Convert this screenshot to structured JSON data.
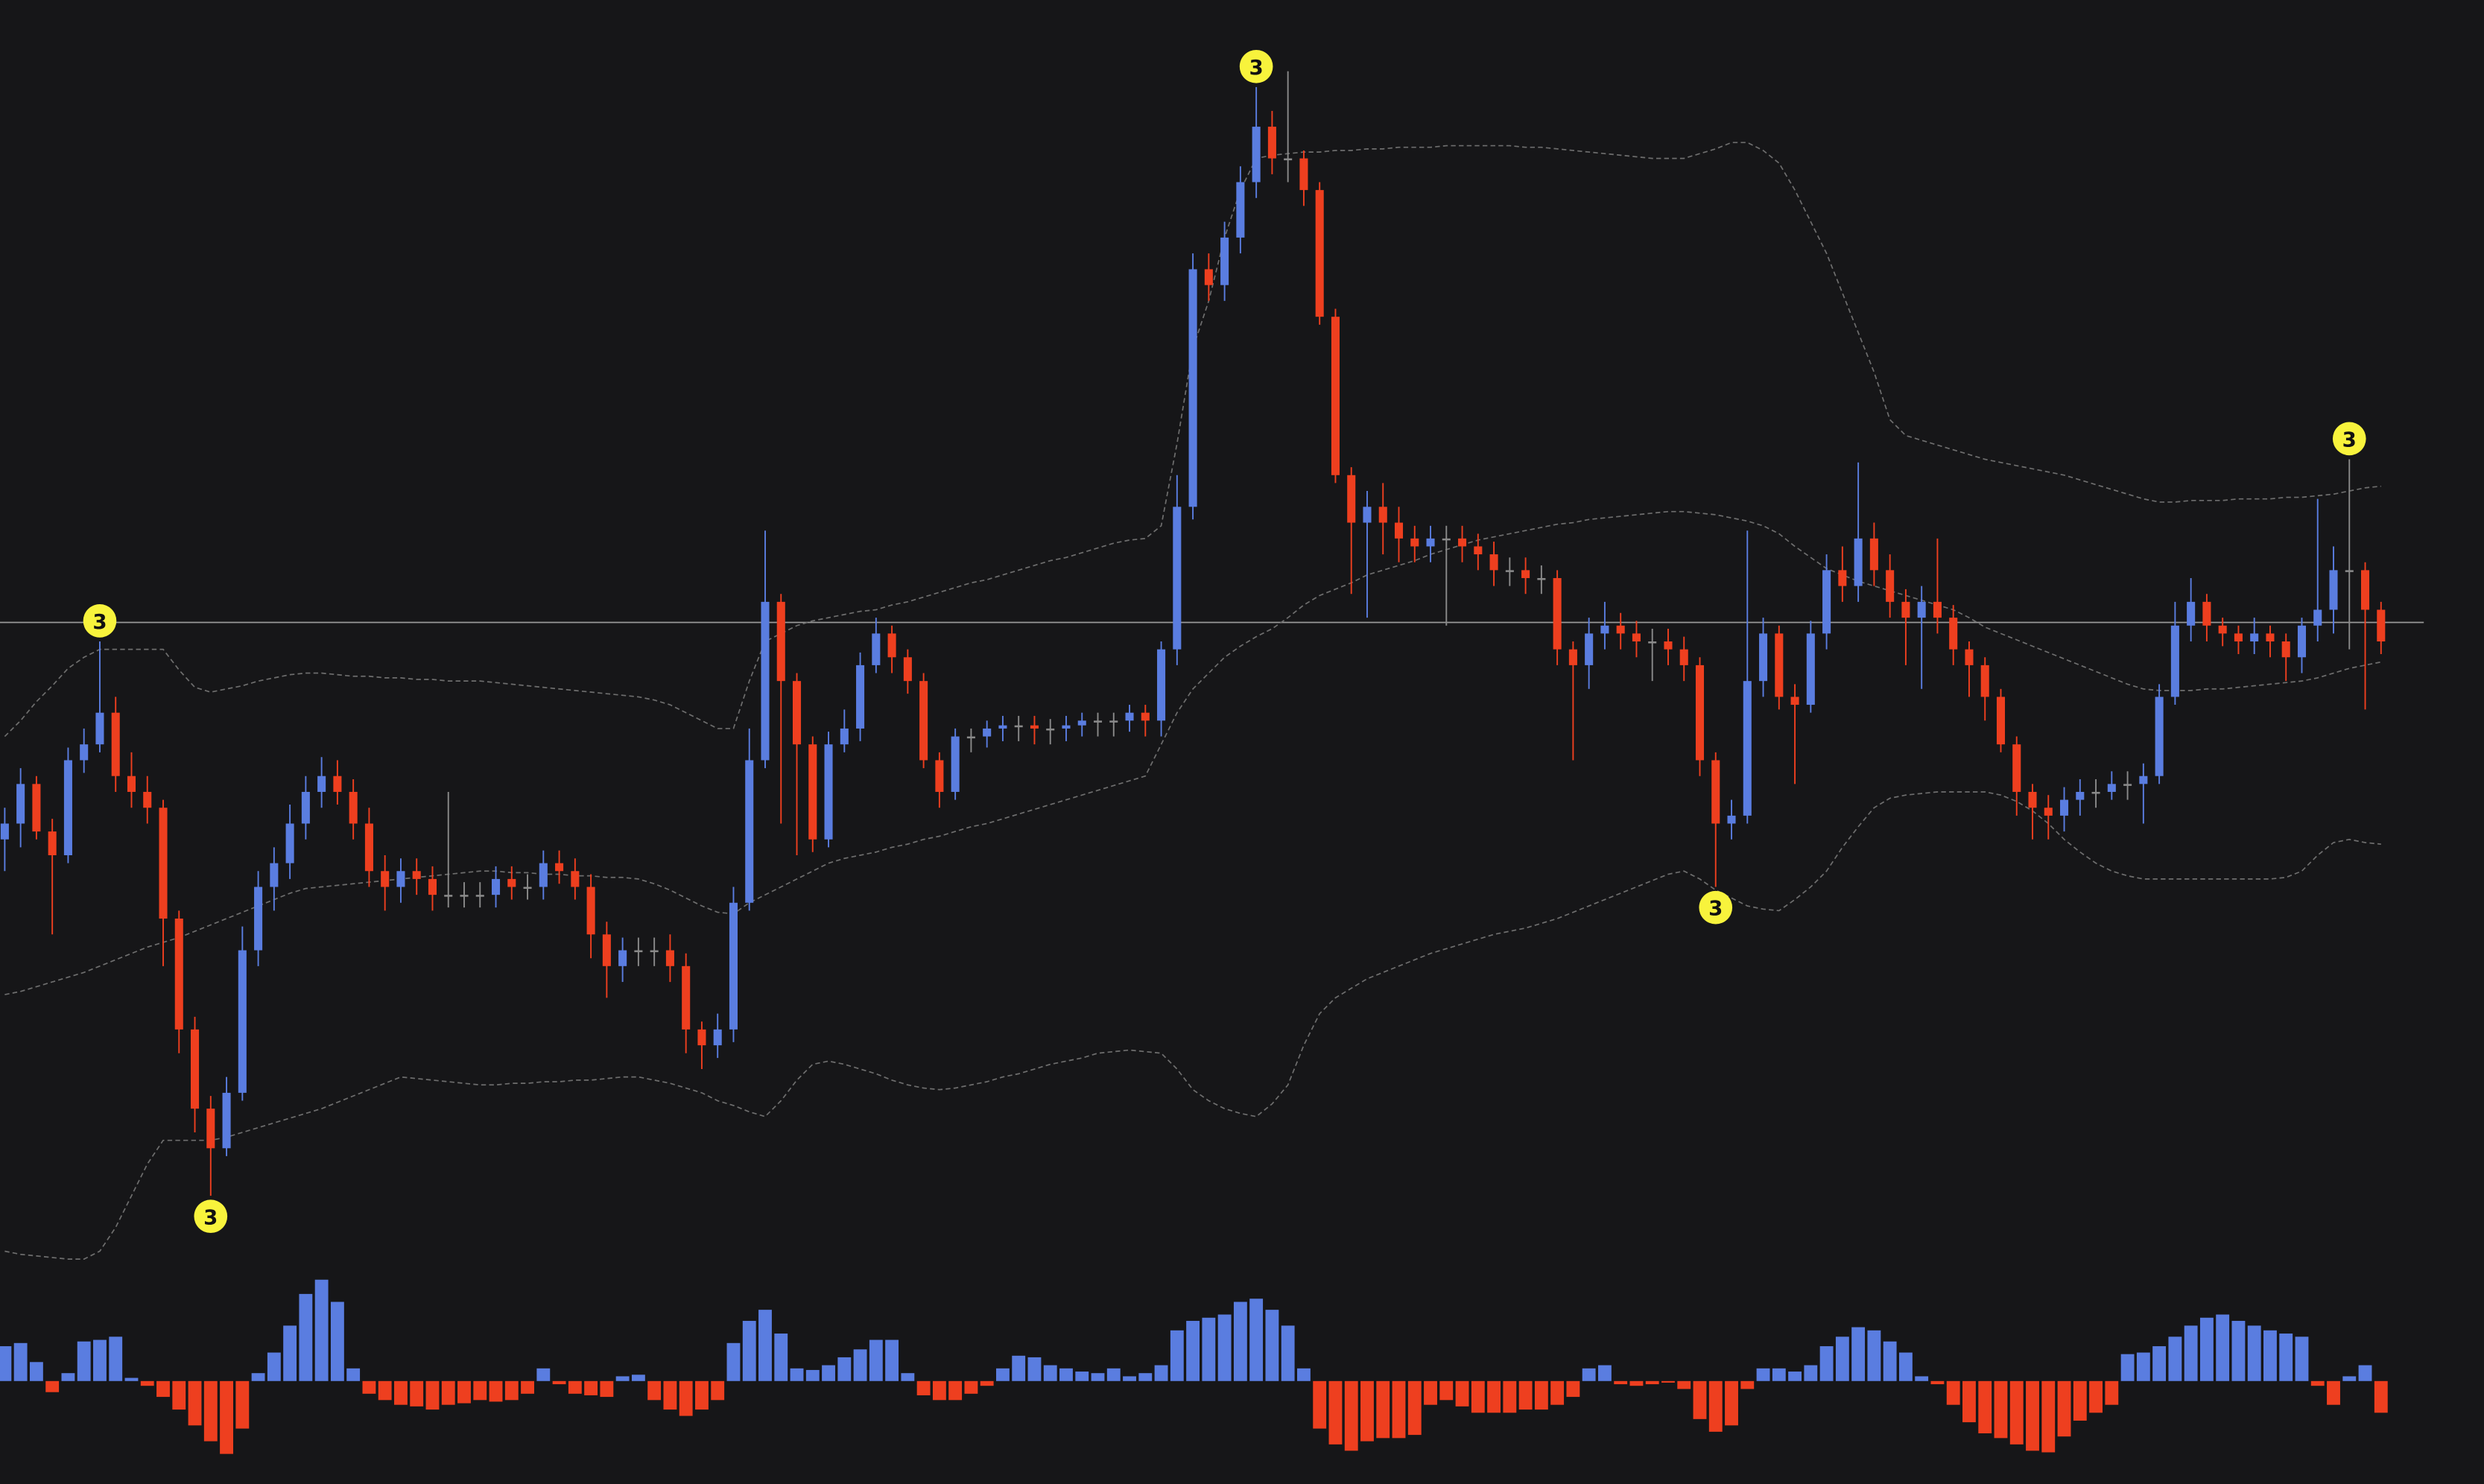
{
  "chart_data": [
    {
      "type": "candlestick",
      "ylim": [
        200,
        1000
      ],
      "hline": 607,
      "colors": {
        "up": "#5a7de0",
        "down": "#ee3f1f",
        "neutral": "#8a8a8a",
        "band": "#6e6e6e",
        "hline": "#9a9a9a",
        "marker": "#f8f33c"
      },
      "open": [
        470,
        480,
        505,
        475,
        460,
        520,
        530,
        550,
        510,
        500,
        490,
        420,
        350,
        300,
        275,
        310,
        400,
        440,
        455,
        480,
        500,
        510,
        500,
        480,
        450,
        440,
        450,
        445,
        435,
        435,
        435,
        435,
        445,
        440,
        440,
        455,
        450,
        440,
        410,
        390,
        400,
        400,
        400,
        390,
        350,
        340,
        350,
        430,
        520,
        620,
        570,
        530,
        470,
        530,
        540,
        580,
        600,
        585,
        570,
        520,
        500,
        535,
        535,
        540,
        542,
        542,
        540,
        540,
        542,
        545,
        545,
        545,
        550,
        545,
        590,
        680,
        830,
        820,
        850,
        885,
        920,
        900,
        900,
        880,
        800,
        700,
        670,
        680,
        670,
        660,
        655,
        660,
        660,
        655,
        650,
        640,
        640,
        635,
        635,
        590,
        580,
        600,
        605,
        600,
        595,
        595,
        590,
        580,
        520,
        480,
        485,
        570,
        600,
        560,
        555,
        600,
        640,
        630,
        660,
        640,
        620,
        610,
        620,
        610,
        590,
        580,
        560,
        530,
        500,
        490,
        485,
        495,
        500,
        500,
        505,
        505,
        510,
        560,
        605,
        620,
        605,
        600,
        595,
        600,
        595,
        585,
        605,
        615,
        640,
        640,
        615
      ],
      "high": [
        490,
        515,
        510,
        483,
        528,
        540,
        595,
        560,
        525,
        510,
        495,
        425,
        358,
        308,
        320,
        415,
        450,
        465,
        492,
        510,
        522,
        520,
        508,
        490,
        460,
        458,
        458,
        453,
        500,
        443,
        443,
        453,
        453,
        448,
        463,
        463,
        458,
        448,
        418,
        408,
        408,
        408,
        410,
        398,
        355,
        360,
        440,
        540,
        665,
        625,
        575,
        535,
        538,
        552,
        588,
        610,
        605,
        590,
        575,
        525,
        540,
        540,
        545,
        548,
        548,
        548,
        546,
        548,
        550,
        550,
        550,
        555,
        555,
        595,
        700,
        840,
        840,
        860,
        895,
        945,
        930,
        955,
        905,
        885,
        805,
        705,
        690,
        695,
        680,
        668,
        668,
        668,
        668,
        663,
        658,
        648,
        648,
        643,
        640,
        595,
        610,
        620,
        613,
        608,
        603,
        603,
        598,
        585,
        525,
        495,
        665,
        610,
        605,
        568,
        608,
        650,
        655,
        708,
        670,
        650,
        628,
        630,
        660,
        618,
        595,
        585,
        565,
        535,
        505,
        498,
        503,
        508,
        508,
        513,
        513,
        518,
        568,
        620,
        635,
        625,
        610,
        605,
        610,
        605,
        600,
        610,
        685,
        655,
        710,
        645,
        620
      ],
      "low": [
        450,
        465,
        470,
        410,
        455,
        512,
        525,
        500,
        490,
        480,
        390,
        335,
        285,
        245,
        270,
        305,
        390,
        425,
        445,
        470,
        490,
        492,
        470,
        440,
        425,
        430,
        435,
        425,
        427,
        427,
        427,
        427,
        432,
        432,
        432,
        442,
        432,
        395,
        370,
        380,
        390,
        390,
        380,
        335,
        325,
        332,
        342,
        425,
        515,
        480,
        460,
        462,
        465,
        525,
        532,
        575,
        575,
        562,
        515,
        490,
        495,
        525,
        528,
        532,
        532,
        530,
        530,
        532,
        535,
        535,
        535,
        538,
        535,
        535,
        580,
        672,
        810,
        810,
        840,
        875,
        890,
        885,
        870,
        795,
        695,
        625,
        610,
        650,
        645,
        645,
        645,
        605,
        645,
        640,
        630,
        630,
        625,
        625,
        580,
        520,
        565,
        590,
        590,
        585,
        570,
        580,
        570,
        510,
        440,
        470,
        480,
        560,
        552,
        505,
        550,
        590,
        620,
        620,
        630,
        610,
        580,
        565,
        600,
        580,
        560,
        545,
        525,
        485,
        470,
        470,
        475,
        485,
        490,
        495,
        495,
        480,
        505,
        555,
        595,
        595,
        592,
        587,
        587,
        585,
        570,
        575,
        595,
        600,
        590,
        552,
        587
      ],
      "close": [
        480,
        505,
        475,
        460,
        520,
        530,
        550,
        510,
        500,
        490,
        420,
        350,
        300,
        275,
        310,
        400,
        440,
        455,
        480,
        500,
        510,
        500,
        480,
        450,
        440,
        450,
        445,
        435,
        435,
        435,
        435,
        445,
        440,
        440,
        455,
        450,
        440,
        410,
        390,
        400,
        400,
        400,
        390,
        350,
        340,
        350,
        430,
        520,
        620,
        570,
        530,
        470,
        530,
        540,
        580,
        600,
        585,
        570,
        520,
        500,
        535,
        535,
        540,
        542,
        542,
        540,
        540,
        542,
        545,
        545,
        545,
        550,
        545,
        590,
        680,
        830,
        820,
        850,
        885,
        920,
        900,
        900,
        880,
        800,
        700,
        670,
        680,
        670,
        660,
        655,
        660,
        660,
        655,
        650,
        640,
        640,
        635,
        635,
        590,
        580,
        600,
        605,
        600,
        595,
        595,
        590,
        580,
        520,
        480,
        485,
        570,
        600,
        560,
        555,
        600,
        640,
        630,
        660,
        640,
        620,
        610,
        620,
        610,
        590,
        580,
        560,
        530,
        500,
        490,
        485,
        495,
        500,
        500,
        505,
        505,
        510,
        560,
        605,
        620,
        605,
        600,
        595,
        600,
        595,
        585,
        605,
        615,
        640,
        640,
        615,
        595
      ],
      "upper": [
        535,
        545,
        557,
        567,
        578,
        585,
        590,
        590,
        590,
        590,
        590,
        577,
        566,
        563,
        565,
        567,
        570,
        572,
        574,
        575,
        575,
        574,
        573,
        573,
        572,
        572,
        571,
        571,
        570,
        570,
        570,
        569,
        568,
        567,
        566,
        565,
        564,
        563,
        562,
        561,
        560,
        558,
        555,
        550,
        545,
        540,
        540,
        570,
        595,
        600,
        605,
        608,
        610,
        612,
        614,
        615,
        618,
        620,
        623,
        626,
        629,
        632,
        634,
        637,
        640,
        643,
        646,
        648,
        651,
        654,
        657,
        659,
        660,
        668,
        720,
        780,
        810,
        850,
        880,
        900,
        902,
        903,
        904,
        904,
        905,
        905,
        906,
        906,
        907,
        907,
        907,
        908,
        908,
        908,
        908,
        908,
        907,
        907,
        906,
        905,
        904,
        903,
        902,
        901,
        900,
        900,
        900,
        903,
        906,
        910,
        910,
        905,
        897,
        880,
        860,
        840,
        815,
        790,
        765,
        735,
        725,
        722,
        719,
        716,
        713,
        710,
        708,
        706,
        704,
        702,
        700,
        697,
        694,
        691,
        688,
        685,
        683,
        683,
        684,
        684,
        684,
        685,
        685,
        685,
        686,
        686,
        687,
        688,
        690,
        692,
        693
      ],
      "middle": [
        372,
        374,
        377,
        380,
        383,
        386,
        390,
        394,
        398,
        402,
        405,
        408,
        412,
        416,
        420,
        424,
        428,
        432,
        436,
        439,
        440,
        441,
        442,
        443,
        444,
        445,
        446,
        447,
        448,
        449,
        450,
        450,
        449,
        449,
        448,
        448,
        447,
        447,
        446,
        446,
        445,
        442,
        438,
        433,
        428,
        424,
        423,
        430,
        435,
        440,
        445,
        450,
        455,
        458,
        460,
        462,
        465,
        467,
        470,
        472,
        475,
        478,
        480,
        483,
        486,
        489,
        492,
        495,
        498,
        501,
        504,
        507,
        510,
        530,
        550,
        565,
        575,
        585,
        592,
        598,
        603,
        610,
        618,
        624,
        628,
        632,
        637,
        640,
        643,
        646,
        650,
        653,
        656,
        659,
        661,
        663,
        665,
        667,
        669,
        670,
        672,
        673,
        674,
        675,
        676,
        677,
        677,
        676,
        675,
        673,
        671,
        668,
        663,
        655,
        648,
        641,
        637,
        633,
        630,
        627,
        624,
        621,
        618,
        615,
        610,
        604,
        600,
        596,
        592,
        588,
        584,
        580,
        576,
        572,
        568,
        565,
        564,
        564,
        564,
        565,
        565,
        566,
        567,
        568,
        569,
        570,
        572,
        575,
        578,
        580,
        582
      ],
      "lower": [
        210,
        208,
        207,
        206,
        205,
        205,
        210,
        225,
        245,
        265,
        280,
        280,
        280,
        280,
        282,
        285,
        288,
        291,
        294,
        297,
        300,
        304,
        308,
        312,
        316,
        320,
        319,
        318,
        317,
        316,
        315,
        315,
        316,
        316,
        317,
        317,
        318,
        318,
        319,
        320,
        320,
        318,
        316,
        313,
        310,
        305,
        302,
        298,
        295,
        305,
        318,
        328,
        330,
        328,
        325,
        322,
        318,
        315,
        313,
        312,
        313,
        315,
        317,
        320,
        322,
        325,
        328,
        330,
        332,
        335,
        336,
        337,
        336,
        335,
        325,
        312,
        305,
        300,
        297,
        295,
        303,
        315,
        340,
        360,
        370,
        376,
        382,
        386,
        390,
        394,
        398,
        401,
        404,
        407,
        410,
        412,
        414,
        417,
        420,
        424,
        428,
        432,
        436,
        440,
        444,
        448,
        450,
        445,
        438,
        433,
        428,
        426,
        425,
        432,
        440,
        450,
        465,
        478,
        490,
        496,
        498,
        499,
        500,
        500,
        500,
        500,
        498,
        494,
        488,
        480,
        470,
        462,
        455,
        450,
        447,
        445,
        445,
        445,
        445,
        445,
        445,
        445,
        445,
        445,
        446,
        450,
        460,
        468,
        470,
        468,
        467
      ],
      "markers": [
        {
          "label": "3",
          "index": 6,
          "side": "high"
        },
        {
          "label": "3",
          "index": 13,
          "side": "low"
        },
        {
          "label": "3",
          "index": 79,
          "side": "high"
        },
        {
          "label": "3",
          "index": 108,
          "side": "low"
        },
        {
          "label": "3",
          "index": 148,
          "side": "high"
        }
      ]
    },
    {
      "type": "bar",
      "ylim": [
        -65,
        82
      ],
      "colors": {
        "up": "#5a7de0",
        "down": "#ee3f1f"
      },
      "values": [
        22,
        24,
        12,
        -7,
        5,
        25,
        26,
        28,
        2,
        -3,
        -10,
        -18,
        -28,
        -38,
        -46,
        -30,
        5,
        18,
        35,
        55,
        64,
        50,
        8,
        -8,
        -12,
        -15,
        -16,
        -18,
        -15,
        -14,
        -12,
        -13,
        -12,
        -8,
        8,
        -2,
        -8,
        -9,
        -10,
        3,
        4,
        -12,
        -18,
        -22,
        -18,
        -12,
        24,
        38,
        45,
        30,
        8,
        7,
        10,
        15,
        20,
        26,
        26,
        5,
        -9,
        -12,
        -12,
        -8,
        -3,
        8,
        16,
        15,
        10,
        8,
        6,
        5,
        8,
        3,
        5,
        10,
        32,
        38,
        40,
        42,
        50,
        52,
        45,
        35,
        8,
        -30,
        -40,
        -44,
        -38,
        -36,
        -36,
        -34,
        -15,
        -12,
        -16,
        -20,
        -20,
        -20,
        -18,
        -18,
        -15,
        -10,
        8,
        10,
        -2,
        -3,
        -2,
        -1,
        -5,
        -24,
        -32,
        -28,
        -5,
        8,
        8,
        6,
        10,
        22,
        28,
        34,
        32,
        25,
        18,
        3,
        -2,
        -15,
        -26,
        -33,
        -36,
        -40,
        -44,
        -45,
        -35,
        -25,
        -20,
        -15,
        17,
        18,
        22,
        28,
        35,
        40,
        42,
        38,
        35,
        32,
        30,
        28,
        -3,
        -15,
        3,
        10,
        -20
      ]
    }
  ]
}
